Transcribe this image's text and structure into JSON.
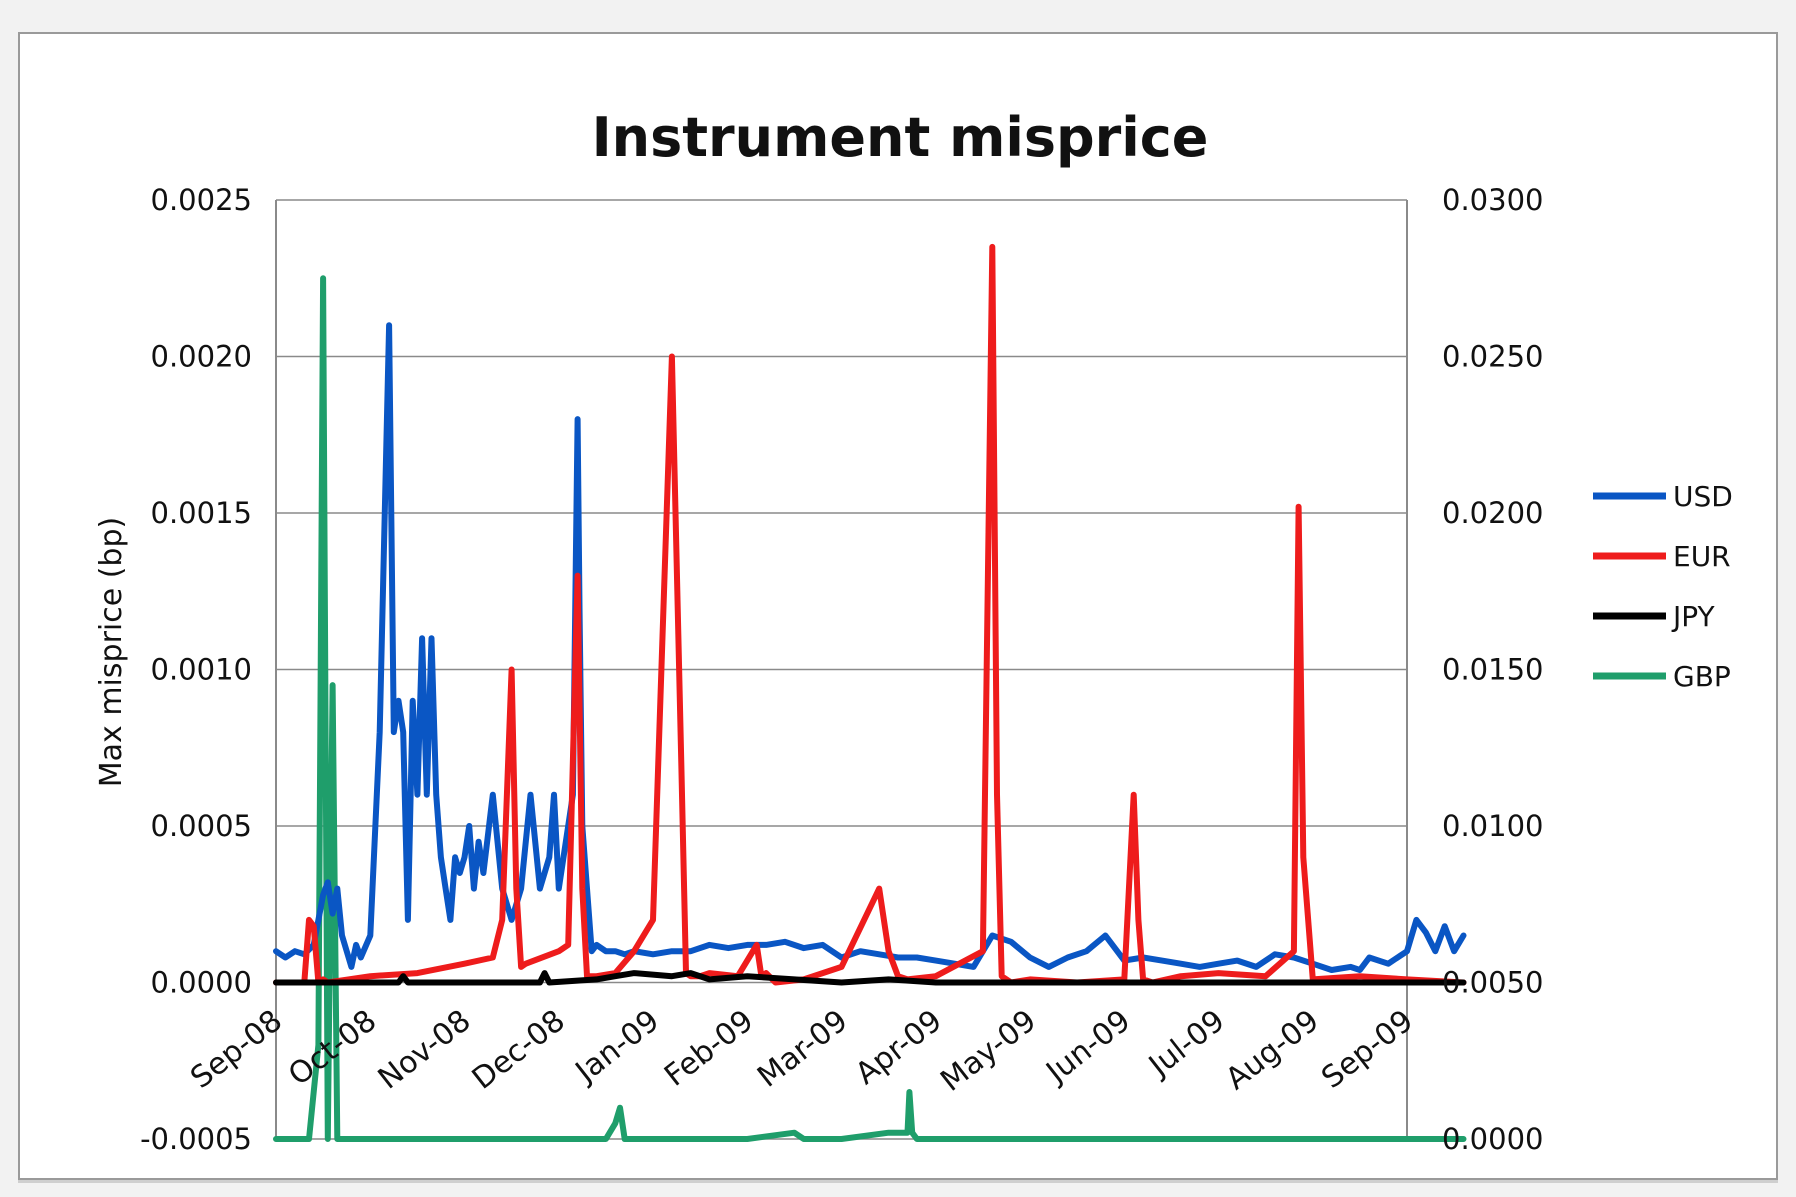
{
  "chart_data": {
    "type": "line",
    "title": "Instrument misprice",
    "ylabel": "Max misprice (bp)",
    "ylim": [
      -0.0005,
      0.0025
    ],
    "y2lim": [
      0.0,
      0.03
    ],
    "y_ticks": [
      "-0.0005",
      "0.0000",
      "0.0005",
      "0.0010",
      "0.0015",
      "0.0020",
      "0.0025"
    ],
    "y2_ticks": [
      "0.0000",
      "0.0050",
      "0.0100",
      "0.0150",
      "0.0200",
      "0.0250",
      "0.0300"
    ],
    "x_ticks": [
      "Sep-08",
      "Oct-08",
      "Nov-08",
      "Dec-08",
      "Jan-09",
      "Feb-09",
      "Mar-09",
      "Apr-09",
      "May-09",
      "Jun-09",
      "Jul-09",
      "Aug-09",
      "Sep-09"
    ],
    "grid": true,
    "legend_position": "right",
    "series": [
      {
        "name": "USD",
        "color": "#0a56c4",
        "axis": "left",
        "x": [
          0,
          0.1,
          0.2,
          0.3,
          0.4,
          0.5,
          0.55,
          0.6,
          0.65,
          0.7,
          0.75,
          0.8,
          0.85,
          0.9,
          1.0,
          1.1,
          1.2,
          1.25,
          1.3,
          1.35,
          1.4,
          1.45,
          1.5,
          1.55,
          1.6,
          1.65,
          1.7,
          1.75,
          1.8,
          1.85,
          1.9,
          1.95,
          2.0,
          2.05,
          2.1,
          2.15,
          2.2,
          2.3,
          2.4,
          2.5,
          2.6,
          2.7,
          2.8,
          2.9,
          2.95,
          3.0,
          3.05,
          3.1,
          3.15,
          3.2,
          3.22,
          3.25,
          3.3,
          3.35,
          3.4,
          3.5,
          3.6,
          3.7,
          3.8,
          4.0,
          4.2,
          4.4,
          4.6,
          4.8,
          5.0,
          5.2,
          5.4,
          5.6,
          5.8,
          6.0,
          6.2,
          6.4,
          6.6,
          6.8,
          7.0,
          7.2,
          7.4,
          7.6,
          7.8,
          8.0,
          8.2,
          8.4,
          8.6,
          8.8,
          9.0,
          9.2,
          9.4,
          9.6,
          9.8,
          10.0,
          10.2,
          10.4,
          10.6,
          10.8,
          11.0,
          11.2,
          11.4,
          11.5,
          11.6,
          11.8,
          12.0,
          12.1,
          12.2,
          12.3,
          12.4,
          12.5,
          12.6
        ],
        "y": [
          0.0001,
          8e-05,
          0.0001,
          9e-05,
          0.00012,
          0.00028,
          0.00032,
          0.00022,
          0.0003,
          0.00015,
          0.0001,
          5e-05,
          0.00012,
          8e-05,
          0.00015,
          0.0008,
          0.0021,
          0.0008,
          0.0009,
          0.0008,
          0.0002,
          0.0009,
          0.0006,
          0.0011,
          0.0006,
          0.0011,
          0.0006,
          0.0004,
          0.0003,
          0.0002,
          0.0004,
          0.00035,
          0.0004,
          0.0005,
          0.0003,
          0.00045,
          0.00035,
          0.0006,
          0.0003,
          0.0002,
          0.0003,
          0.0006,
          0.0003,
          0.0004,
          0.0006,
          0.0003,
          0.0004,
          0.0005,
          0.0006,
          0.0018,
          0.0012,
          0.0005,
          0.0003,
          0.0001,
          0.00012,
          0.0001,
          0.0001,
          9e-05,
          0.0001,
          9e-05,
          0.0001,
          0.0001,
          0.00012,
          0.00011,
          0.00012,
          0.00012,
          0.00013,
          0.00011,
          0.00012,
          8e-05,
          0.0001,
          9e-05,
          8e-05,
          8e-05,
          7e-05,
          6e-05,
          5e-05,
          0.00015,
          0.00013,
          8e-05,
          5e-05,
          8e-05,
          0.0001,
          0.00015,
          7e-05,
          8e-05,
          7e-05,
          6e-05,
          5e-05,
          6e-05,
          7e-05,
          5e-05,
          9e-05,
          8e-05,
          6e-05,
          4e-05,
          5e-05,
          4e-05,
          8e-05,
          6e-05,
          0.0001,
          0.0002,
          0.00016,
          0.0001,
          0.00018,
          0.0001,
          0.00015
        ]
      },
      {
        "name": "EUR",
        "color": "#ee1c1c",
        "axis": "left",
        "x": [
          0,
          0.3,
          0.35,
          0.4,
          0.45,
          0.5,
          0.55,
          1.0,
          1.5,
          2.0,
          2.3,
          2.4,
          2.5,
          2.55,
          2.6,
          2.65,
          3.0,
          3.1,
          3.2,
          3.25,
          3.3,
          3.4,
          3.6,
          3.8,
          4.0,
          4.2,
          4.3,
          4.35,
          4.4,
          4.5,
          4.6,
          4.9,
          5.1,
          5.15,
          5.2,
          5.3,
          5.6,
          6.0,
          6.4,
          6.5,
          6.6,
          6.7,
          7.0,
          7.5,
          7.6,
          7.65,
          7.7,
          7.8,
          8.0,
          8.5,
          9.0,
          9.1,
          9.15,
          9.2,
          9.3,
          9.6,
          10.0,
          10.5,
          10.8,
          10.85,
          10.9,
          11.0,
          11.5,
          12.0,
          12.6
        ],
        "y": [
          0.0,
          0.0,
          0.0002,
          0.00018,
          0.0,
          1e-05,
          0.0,
          2e-05,
          3e-05,
          6e-05,
          8e-05,
          0.0002,
          0.001,
          0.0003,
          5e-05,
          6e-05,
          0.0001,
          0.00012,
          0.0013,
          0.0003,
          2e-05,
          2e-05,
          3e-05,
          0.0001,
          0.0002,
          0.002,
          0.0007,
          3e-05,
          2e-05,
          2e-05,
          3e-05,
          2e-05,
          0.00012,
          2e-05,
          3e-05,
          0.0,
          1e-05,
          5e-05,
          0.0003,
          0.0001,
          2e-05,
          1e-05,
          2e-05,
          0.0001,
          0.00235,
          0.0006,
          2e-05,
          0.0,
          1e-05,
          0.0,
          1e-05,
          0.0006,
          0.0002,
          1e-05,
          0.0,
          2e-05,
          3e-05,
          2e-05,
          0.0001,
          0.00152,
          0.0004,
          1e-05,
          2e-05,
          1e-05,
          0.0
        ]
      },
      {
        "name": "JPY",
        "color": "#000000",
        "axis": "left",
        "x": [
          0,
          1.0,
          1.3,
          1.35,
          1.4,
          2.0,
          2.8,
          2.85,
          2.9,
          3.4,
          3.6,
          3.8,
          4.2,
          4.4,
          4.6,
          5.0,
          5.5,
          6.0,
          6.5,
          7.0,
          8.0,
          9.0,
          10.0,
          11.0,
          12.0,
          12.6
        ],
        "y": [
          0.0,
          0.0,
          0.0,
          2e-05,
          0.0,
          0.0,
          0.0,
          3e-05,
          0.0,
          1e-05,
          2e-05,
          3e-05,
          2e-05,
          3e-05,
          1e-05,
          2e-05,
          1e-05,
          0.0,
          1e-05,
          0.0,
          0.0,
          0.0,
          0.0,
          0.0,
          0.0,
          0.0
        ]
      },
      {
        "name": "GBP",
        "color": "#1f9e6b",
        "axis": "right",
        "x": [
          0,
          0.35,
          0.45,
          0.5,
          0.55,
          0.6,
          0.65,
          0.7,
          1.0,
          2.0,
          3.0,
          3.5,
          3.6,
          3.65,
          3.7,
          4.0,
          5.0,
          5.5,
          5.6,
          5.7,
          6.0,
          6.5,
          6.7,
          6.72,
          6.75,
          6.8,
          7.0,
          8.0,
          9.0,
          10.0,
          11.0,
          12.0,
          12.6
        ],
        "y": [
          0.0,
          0.0,
          0.003,
          0.0275,
          0.0,
          0.0145,
          0.0,
          0.0,
          0.0,
          0.0,
          0.0,
          0.0,
          0.0005,
          0.001,
          0.0,
          0.0,
          0.0,
          0.0002,
          0.0,
          0.0,
          0.0,
          0.0002,
          0.0002,
          0.0015,
          0.0002,
          0.0,
          0.0,
          0.0,
          0.0,
          0.0,
          0.0,
          0.0,
          0.0
        ]
      }
    ]
  }
}
